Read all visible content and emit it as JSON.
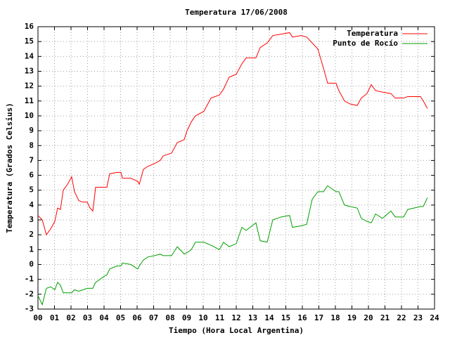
{
  "chart_data": {
    "type": "line",
    "title": "Temperatura 17/06/2008",
    "x_label": "Tiempo (Hora Local Argentina)",
    "y_label": "Temperatura (Grados Celsius)",
    "x": [
      0,
      0.26,
      0.51,
      0.77,
      1.02,
      1.19,
      1.36,
      1.53,
      1.79,
      2.04,
      2.21,
      2.47,
      2.72,
      2.98,
      3.15,
      3.32,
      3.49,
      4.0,
      4.17,
      4.34,
      4.77,
      5.02,
      5.11,
      5.62,
      6.04,
      6.13,
      6.38,
      6.64,
      7.06,
      7.4,
      7.57,
      8.09,
      8.43,
      8.85,
      9.02,
      9.28,
      9.53,
      10.04,
      10.47,
      10.98,
      11.23,
      11.57,
      12.0,
      12.34,
      12.6,
      13.19,
      13.45,
      13.87,
      14.21,
      14.72,
      15.23,
      15.4,
      15.91,
      16.26,
      16.6,
      16.94,
      17.28,
      17.53,
      18.04,
      18.21,
      18.55,
      18.89,
      19.32,
      19.57,
      19.91,
      20.17,
      20.43,
      20.85,
      21.36,
      21.62,
      22.13,
      22.38,
      23.15,
      23.32,
      23.57
    ],
    "series": [
      {
        "name": "Temperatura",
        "color": "#ff0000",
        "values": [
          3.3,
          3.0,
          2.0,
          2.4,
          2.9,
          3.8,
          3.7,
          5.0,
          5.4,
          5.9,
          4.9,
          4.3,
          4.2,
          4.2,
          3.8,
          3.6,
          5.2,
          5.2,
          5.2,
          6.1,
          6.2,
          6.2,
          5.8,
          5.8,
          5.6,
          5.4,
          6.4,
          6.6,
          6.8,
          7.0,
          7.3,
          7.5,
          8.2,
          8.4,
          9.0,
          9.6,
          10.0,
          10.3,
          11.2,
          11.4,
          11.8,
          12.6,
          12.8,
          13.5,
          13.9,
          13.9,
          14.6,
          14.9,
          15.4,
          15.5,
          15.6,
          15.3,
          15.4,
          15.3,
          14.9,
          14.5,
          13.2,
          12.2,
          12.2,
          11.7,
          11.0,
          10.8,
          10.7,
          11.2,
          11.5,
          12.1,
          11.7,
          11.6,
          11.5,
          11.2,
          11.2,
          11.3,
          11.3,
          11.0,
          10.5
        ]
      },
      {
        "name": "Punto de Rocío",
        "color": "#00a000",
        "values": [
          -2.1,
          -2.7,
          -1.6,
          -1.5,
          -1.7,
          -1.2,
          -1.4,
          -1.9,
          -1.9,
          -1.9,
          -1.7,
          -1.8,
          -1.7,
          -1.6,
          -1.6,
          -1.6,
          -1.2,
          -0.8,
          -0.7,
          -0.3,
          -0.1,
          -0.1,
          0.1,
          0.0,
          -0.3,
          -0.1,
          0.3,
          0.5,
          0.6,
          0.7,
          0.6,
          0.6,
          1.2,
          0.7,
          0.8,
          1.0,
          1.5,
          1.5,
          1.3,
          1.0,
          1.5,
          1.2,
          1.4,
          2.5,
          2.3,
          2.8,
          1.6,
          1.5,
          3.0,
          3.2,
          3.3,
          2.5,
          2.6,
          2.7,
          4.4,
          4.9,
          4.9,
          5.3,
          4.9,
          4.9,
          4.0,
          3.9,
          3.8,
          3.1,
          2.9,
          2.8,
          3.4,
          3.1,
          3.6,
          3.2,
          3.2,
          3.7,
          3.9,
          3.9,
          4.5
        ]
      }
    ],
    "xlim": [
      0,
      24
    ],
    "xticks": [
      {
        "value": 0,
        "label": "00"
      },
      {
        "value": 1,
        "label": "01"
      },
      {
        "value": 2,
        "label": "02"
      },
      {
        "value": 3,
        "label": "03"
      },
      {
        "value": 4,
        "label": "04"
      },
      {
        "value": 5,
        "label": "05"
      },
      {
        "value": 6,
        "label": "06"
      },
      {
        "value": 7,
        "label": "07"
      },
      {
        "value": 8,
        "label": "08"
      },
      {
        "value": 9,
        "label": "09"
      },
      10,
      11,
      12,
      13,
      14,
      15,
      16,
      17,
      18,
      19,
      20,
      21,
      22,
      23,
      24
    ],
    "ylim": [
      -3,
      16
    ],
    "yticks": [
      -3,
      -2,
      -1,
      0,
      1,
      2,
      3,
      4,
      5,
      6,
      7,
      8,
      9,
      10,
      11,
      12,
      13,
      14,
      15,
      16
    ],
    "grid": true,
    "legend": "top-right"
  }
}
